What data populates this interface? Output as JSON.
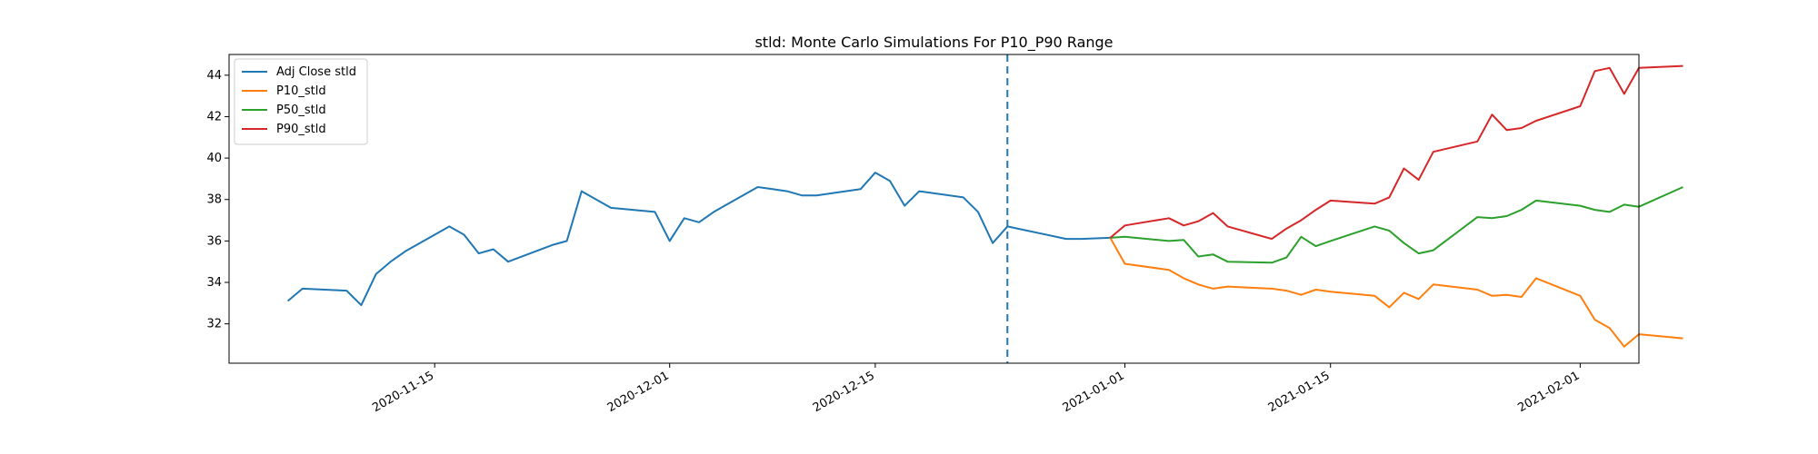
{
  "chart_data": {
    "type": "line",
    "title": "stld: Monte Carlo Simulations For P10_P90 Range",
    "xlabel": "",
    "ylabel": "",
    "xlim": [
      "2020-11-01",
      "2021-02-05"
    ],
    "ylim": [
      30.1,
      45.0
    ],
    "yticks": [
      32,
      34,
      36,
      38,
      40,
      42,
      44
    ],
    "xticks": [
      "2020-11-15",
      "2020-12-01",
      "2020-12-15",
      "2021-01-01",
      "2021-01-15",
      "2021-02-01"
    ],
    "legend_position": "top-left",
    "vline": {
      "x": "2020-12-24",
      "style": "dashed",
      "color": "#1f77b4"
    },
    "series": [
      {
        "name": "Adj Close stld",
        "color": "#1f77b4",
        "points": [
          [
            "2020-11-05",
            33.1
          ],
          [
            "2020-11-06",
            33.7
          ],
          [
            "2020-11-09",
            33.6
          ],
          [
            "2020-11-10",
            32.9
          ],
          [
            "2020-11-11",
            34.4
          ],
          [
            "2020-11-12",
            35.0
          ],
          [
            "2020-11-13",
            35.5
          ],
          [
            "2020-11-16",
            36.7
          ],
          [
            "2020-11-17",
            36.3
          ],
          [
            "2020-11-18",
            35.4
          ],
          [
            "2020-11-19",
            35.6
          ],
          [
            "2020-11-20",
            35.0
          ],
          [
            "2020-11-23",
            35.8
          ],
          [
            "2020-11-24",
            36.0
          ],
          [
            "2020-11-25",
            38.4
          ],
          [
            "2020-11-27",
            37.6
          ],
          [
            "2020-11-30",
            37.4
          ],
          [
            "2020-12-01",
            36.0
          ],
          [
            "2020-12-02",
            37.1
          ],
          [
            "2020-12-03",
            36.9
          ],
          [
            "2020-12-04",
            37.4
          ],
          [
            "2020-12-07",
            38.6
          ],
          [
            "2020-12-08",
            38.5
          ],
          [
            "2020-12-09",
            38.4
          ],
          [
            "2020-12-10",
            38.2
          ],
          [
            "2020-12-11",
            38.2
          ],
          [
            "2020-12-14",
            38.5
          ],
          [
            "2020-12-15",
            39.3
          ],
          [
            "2020-12-16",
            38.9
          ],
          [
            "2020-12-17",
            37.7
          ],
          [
            "2020-12-18",
            38.4
          ],
          [
            "2020-12-21",
            38.1
          ],
          [
            "2020-12-22",
            37.4
          ],
          [
            "2020-12-23",
            35.9
          ],
          [
            "2020-12-24",
            36.7
          ],
          [
            "2020-12-28",
            36.1
          ],
          [
            "2020-12-29",
            36.1
          ],
          [
            "2020-12-31",
            36.15
          ]
        ]
      },
      {
        "name": "P10_stld",
        "color": "#ff7f0e",
        "points": [
          [
            "2020-12-31",
            36.15
          ],
          [
            "2021-01-01",
            34.9
          ],
          [
            "2021-01-04",
            34.6
          ],
          [
            "2021-01-05",
            34.2
          ],
          [
            "2021-01-06",
            33.9
          ],
          [
            "2021-01-07",
            33.7
          ],
          [
            "2021-01-08",
            33.8
          ],
          [
            "2021-01-11",
            33.7
          ],
          [
            "2021-01-12",
            33.6
          ],
          [
            "2021-01-13",
            33.4
          ],
          [
            "2021-01-14",
            33.65
          ],
          [
            "2021-01-15",
            33.55
          ],
          [
            "2021-01-18",
            33.35
          ],
          [
            "2021-01-19",
            32.8
          ],
          [
            "2021-01-20",
            33.5
          ],
          [
            "2021-01-21",
            33.2
          ],
          [
            "2021-01-22",
            33.9
          ],
          [
            "2021-01-25",
            33.65
          ],
          [
            "2021-01-26",
            33.35
          ],
          [
            "2021-01-27",
            33.4
          ],
          [
            "2021-01-28",
            33.3
          ],
          [
            "2021-01-29",
            34.2
          ],
          [
            "2021-02-01",
            33.35
          ],
          [
            "2021-02-02",
            32.2
          ],
          [
            "2021-02-03",
            31.8
          ],
          [
            "2021-02-04",
            30.9
          ],
          [
            "2021-02-05",
            31.5
          ],
          [
            "2021-02-08",
            31.3
          ]
        ]
      },
      {
        "name": "P50_stld",
        "color": "#2ca02c",
        "points": [
          [
            "2020-12-31",
            36.15
          ],
          [
            "2021-01-01",
            36.2
          ],
          [
            "2021-01-04",
            36.0
          ],
          [
            "2021-01-05",
            36.05
          ],
          [
            "2021-01-06",
            35.25
          ],
          [
            "2021-01-07",
            35.35
          ],
          [
            "2021-01-08",
            35.0
          ],
          [
            "2021-01-11",
            34.95
          ],
          [
            "2021-01-12",
            35.2
          ],
          [
            "2021-01-13",
            36.2
          ],
          [
            "2021-01-14",
            35.75
          ],
          [
            "2021-01-15",
            36.0
          ],
          [
            "2021-01-18",
            36.7
          ],
          [
            "2021-01-19",
            36.5
          ],
          [
            "2021-01-20",
            35.9
          ],
          [
            "2021-01-21",
            35.4
          ],
          [
            "2021-01-22",
            35.55
          ],
          [
            "2021-01-25",
            37.15
          ],
          [
            "2021-01-26",
            37.1
          ],
          [
            "2021-01-27",
            37.2
          ],
          [
            "2021-01-28",
            37.5
          ],
          [
            "2021-01-29",
            37.95
          ],
          [
            "2021-02-01",
            37.7
          ],
          [
            "2021-02-02",
            37.5
          ],
          [
            "2021-02-03",
            37.4
          ],
          [
            "2021-02-04",
            37.75
          ],
          [
            "2021-02-05",
            37.65
          ],
          [
            "2021-02-08",
            38.6
          ]
        ]
      },
      {
        "name": "P90_stld",
        "color": "#d62728",
        "points": [
          [
            "2020-12-31",
            36.15
          ],
          [
            "2021-01-01",
            36.75
          ],
          [
            "2021-01-04",
            37.1
          ],
          [
            "2021-01-05",
            36.75
          ],
          [
            "2021-01-06",
            36.95
          ],
          [
            "2021-01-07",
            37.35
          ],
          [
            "2021-01-08",
            36.7
          ],
          [
            "2021-01-11",
            36.1
          ],
          [
            "2021-01-12",
            36.6
          ],
          [
            "2021-01-13",
            37.0
          ],
          [
            "2021-01-14",
            37.5
          ],
          [
            "2021-01-15",
            37.95
          ],
          [
            "2021-01-18",
            37.8
          ],
          [
            "2021-01-19",
            38.1
          ],
          [
            "2021-01-20",
            39.5
          ],
          [
            "2021-01-21",
            38.95
          ],
          [
            "2021-01-22",
            40.3
          ],
          [
            "2021-01-25",
            40.8
          ],
          [
            "2021-01-26",
            42.1
          ],
          [
            "2021-01-27",
            41.35
          ],
          [
            "2021-01-28",
            41.45
          ],
          [
            "2021-01-29",
            41.8
          ],
          [
            "2021-02-01",
            42.5
          ],
          [
            "2021-02-02",
            44.2
          ],
          [
            "2021-02-03",
            44.35
          ],
          [
            "2021-02-04",
            43.1
          ],
          [
            "2021-02-05",
            44.35
          ],
          [
            "2021-02-08",
            44.45
          ]
        ]
      }
    ]
  }
}
